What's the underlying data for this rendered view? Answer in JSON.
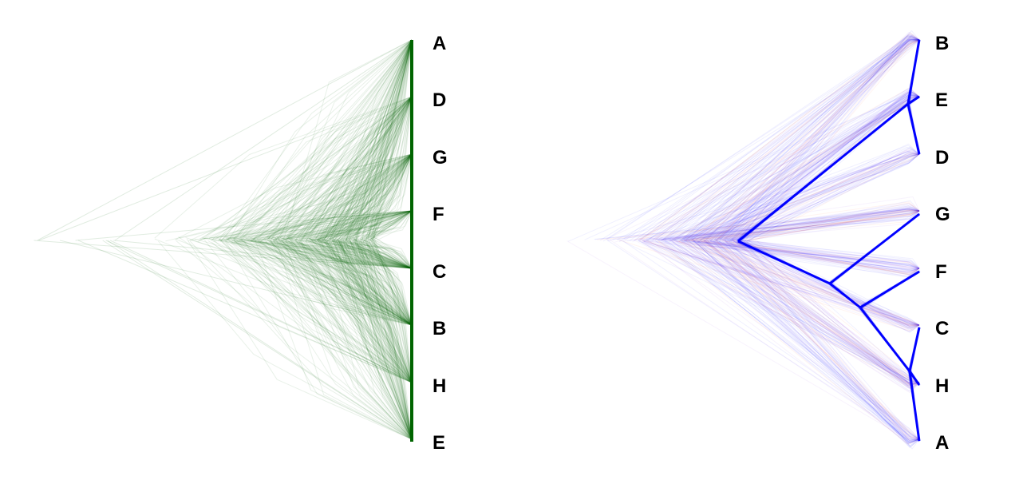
{
  "left_tree": {
    "tips": [
      "A",
      "D",
      "G",
      "F",
      "C",
      "B",
      "H",
      "E"
    ],
    "color": "#006400"
  },
  "right_tree": {
    "tips": [
      "B",
      "E",
      "D",
      "G",
      "F",
      "C",
      "H",
      "A"
    ],
    "color": "#0000ff",
    "secondary_colors": [
      "#8a2be2",
      "#ff4500"
    ]
  }
}
